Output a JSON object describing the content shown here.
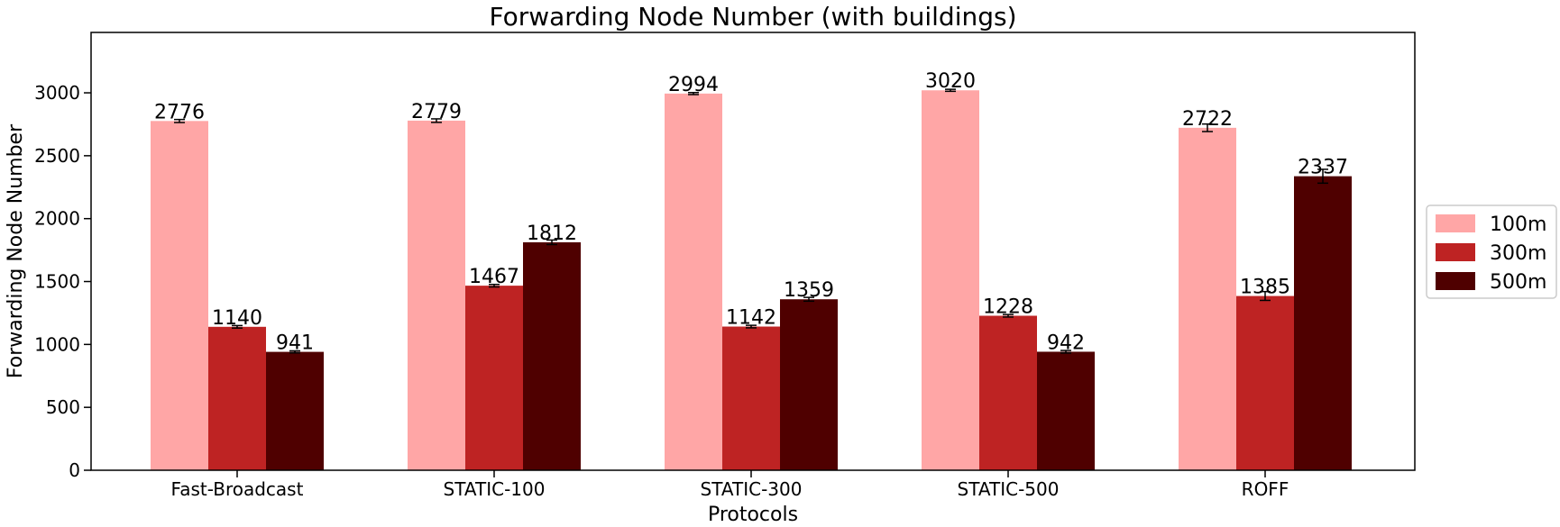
{
  "chart_data": {
    "type": "bar",
    "title": "Forwarding Node Number (with buildings)",
    "xlabel": "Protocols",
    "ylabel": "Forwarding Node Number",
    "categories": [
      "Fast-Broadcast",
      "STATIC-100",
      "STATIC-300",
      "STATIC-500",
      "ROFF"
    ],
    "ylim": [
      0,
      3480
    ],
    "yticks": [
      0,
      500,
      1000,
      1500,
      2000,
      2500,
      3000
    ],
    "grid": false,
    "legend_position": "right",
    "series": [
      {
        "name": "100m",
        "color": "#ffa6a6",
        "values": [
          2776,
          2779,
          2994,
          3020,
          2722
        ],
        "errors": [
          12,
          14,
          8,
          8,
          30
        ]
      },
      {
        "name": "300m",
        "color": "#be2323",
        "values": [
          1140,
          1467,
          1142,
          1228,
          1385
        ],
        "errors": [
          10,
          10,
          10,
          10,
          35
        ]
      },
      {
        "name": "500m",
        "color": "#4f0000",
        "values": [
          941,
          1812,
          1359,
          942,
          2337
        ],
        "errors": [
          8,
          18,
          15,
          10,
          55
        ]
      }
    ]
  }
}
